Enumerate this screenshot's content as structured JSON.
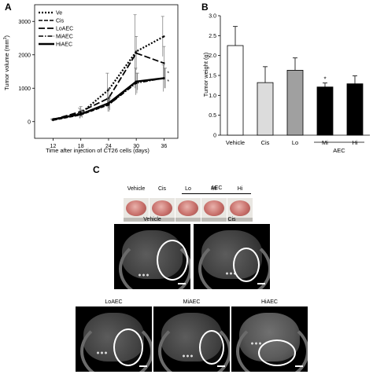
{
  "panels": {
    "a": "A",
    "b": "B",
    "c": "C"
  },
  "chart_data": [
    {
      "type": "line",
      "x": [
        12,
        18,
        24,
        30,
        36
      ],
      "xlabel": "Time after injection of CT26 cells (days)",
      "ylabel_main": "Tumor volume (mm",
      "ylabel_sup": "3",
      "ylabel_end": ")",
      "ylim": [
        -500,
        3500
      ],
      "yticks": [
        0,
        1000,
        2000,
        3000
      ],
      "legend_position": "top-left",
      "significance_marks": [
        "*",
        "*"
      ],
      "series": [
        {
          "name": "Ve",
          "values": [
            50,
            250,
            950,
            2100,
            2550
          ],
          "errors": [
            30,
            150,
            500,
            1100,
            600
          ],
          "dash": "2,2",
          "width": 2.2
        },
        {
          "name": "Cis",
          "values": [
            40,
            200,
            500,
            1200,
            1300
          ],
          "errors": [
            20,
            100,
            200,
            400,
            400
          ],
          "dash": "5,2",
          "width": 1.5
        },
        {
          "name": "LoAEC",
          "values": [
            60,
            300,
            700,
            2050,
            1750
          ],
          "errors": [
            30,
            150,
            300,
            500,
            500
          ],
          "dash": "8,3",
          "width": 1.8
        },
        {
          "name": "MiAEC",
          "values": [
            60,
            250,
            500,
            1150,
            1300
          ],
          "errors": [
            30,
            100,
            200,
            300,
            300
          ],
          "dash": "6,2,1.5,2",
          "width": 1.5
        },
        {
          "name": "HiAEC",
          "values": [
            70,
            220,
            550,
            1200,
            1300
          ],
          "errors": [
            30,
            100,
            200,
            250,
            300
          ],
          "dash": "",
          "width": 2.4
        }
      ]
    },
    {
      "type": "bar",
      "categories": [
        "Vehicle",
        "Cis",
        "Lo",
        "Mi",
        "Hi"
      ],
      "values": [
        2.25,
        1.32,
        1.63,
        1.21,
        1.29
      ],
      "errors": [
        0.48,
        0.4,
        0.31,
        0.1,
        0.2
      ],
      "colors": [
        "#ffffff",
        "#dcdcdc",
        "#a0a0a0",
        "#000000",
        "#000000"
      ],
      "ylabel": "Tumor weight (g)",
      "ylim": [
        0,
        3.0
      ],
      "yticks": [
        "0",
        "0.5",
        "1.0",
        "1.5",
        "2.0",
        "2.5",
        "3.0"
      ],
      "group_label": "AEC",
      "significance": {
        "category": "Mi",
        "mark": "*"
      }
    }
  ],
  "panel_c": {
    "photo_labels": [
      "Vehicle",
      "Cis",
      "Lo",
      "Mi",
      "Hi"
    ],
    "photo_group_label": "AEC",
    "ct_labels": [
      "Vehicle",
      "Cis",
      "LoAEC",
      "MiAEC",
      "HiAEC"
    ]
  }
}
